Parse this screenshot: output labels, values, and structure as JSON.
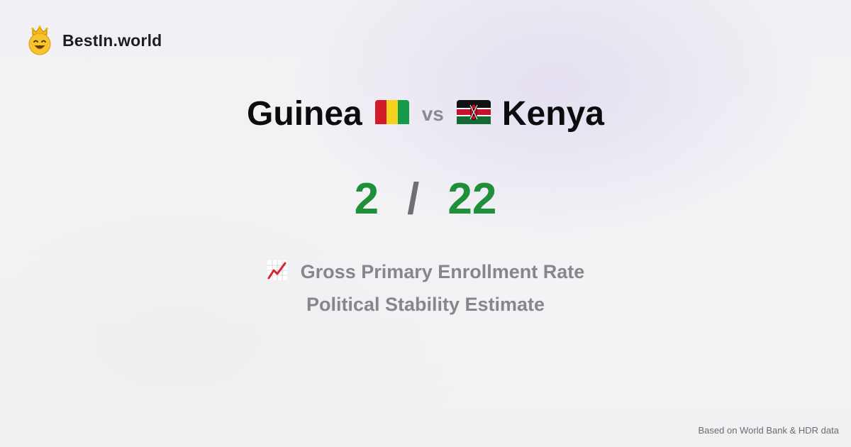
{
  "brand": {
    "name": "BestIn.world",
    "icon": "crown-smiley-icon"
  },
  "comparison": {
    "left_country": "Guinea",
    "left_flag": "guinea-flag-icon",
    "vs_label": "vs",
    "right_country": "Kenya",
    "right_flag": "kenya-flag-icon",
    "left_score": "2",
    "separator": "/",
    "right_score": "22",
    "score_color": "#1f8f3a"
  },
  "metrics": {
    "icon": "chart-increasing-icon",
    "primary": "Gross Primary Enrollment Rate",
    "secondary": "Political Stability Estimate"
  },
  "footer": {
    "source": "Based on World Bank & HDR data"
  }
}
